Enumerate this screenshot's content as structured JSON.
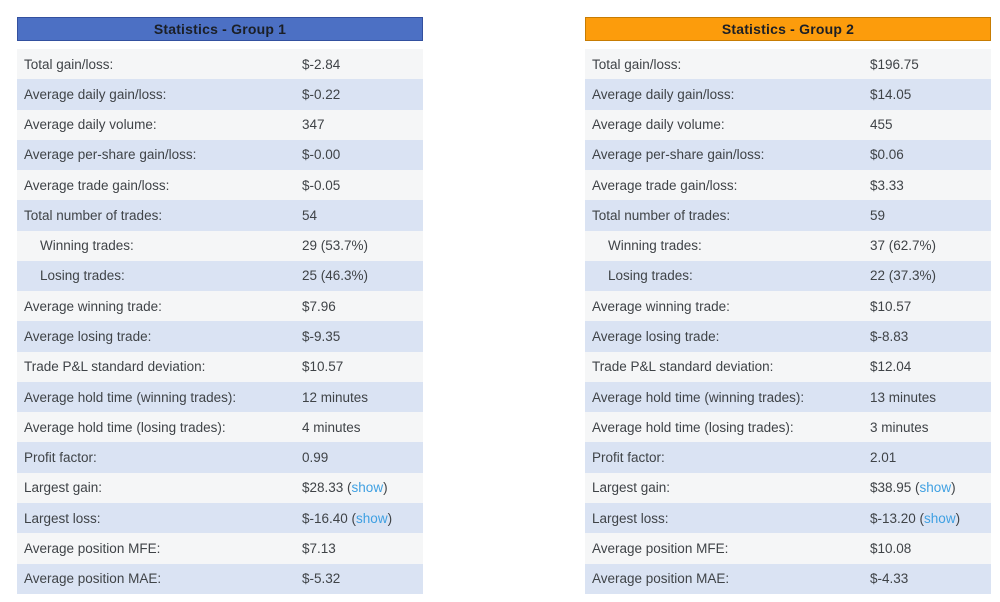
{
  "colors": {
    "page_bg": "#ffffff",
    "header_text": "#1b1f26",
    "group1_header_bg": "#4c70c4",
    "group1_header_border": "#33509f",
    "group2_header_bg": "#fc9c0c",
    "group2_header_border": "#c77c03",
    "row_light_bg": "#f5f6f7",
    "row_blue_bg": "#dae3f3",
    "row_text": "#3f4347",
    "link_color": "#3fa0e2"
  },
  "group1": {
    "title": "Statistics - Group 1",
    "rows": [
      {
        "label": "Total gain/loss:",
        "value": "$-2.84"
      },
      {
        "label": "Average daily gain/loss:",
        "value": "$-0.22"
      },
      {
        "label": "Average daily volume:",
        "value": "347"
      },
      {
        "label": "Average per-share gain/loss:",
        "value": "$-0.00"
      },
      {
        "label": "Average trade gain/loss:",
        "value": "$-0.05"
      },
      {
        "label": "Total number of trades:",
        "value": "54"
      },
      {
        "label": "Winning trades:",
        "value": "29 (53.7%)",
        "indent": true
      },
      {
        "label": "Losing trades:",
        "value": "25 (46.3%)",
        "indent": true
      },
      {
        "label": "Average winning trade:",
        "value": "$7.96"
      },
      {
        "label": "Average losing trade:",
        "value": "$-9.35"
      },
      {
        "label": "Trade P&L standard deviation:",
        "value": "$10.57"
      },
      {
        "label": "Average hold time (winning trades):",
        "value": "12 minutes"
      },
      {
        "label": "Average hold time (losing trades):",
        "value": "4 minutes"
      },
      {
        "label": "Profit factor:",
        "value": "0.99"
      },
      {
        "label": "Largest gain:",
        "value": "$28.33",
        "link": "show"
      },
      {
        "label": "Largest loss:",
        "value": "$-16.40",
        "link": "show"
      },
      {
        "label": "Average position MFE:",
        "value": "$7.13"
      },
      {
        "label": "Average position MAE:",
        "value": "$-5.32"
      }
    ]
  },
  "group2": {
    "title": "Statistics - Group 2",
    "rows": [
      {
        "label": "Total gain/loss:",
        "value": "$196.75"
      },
      {
        "label": "Average daily gain/loss:",
        "value": "$14.05"
      },
      {
        "label": "Average daily volume:",
        "value": "455"
      },
      {
        "label": "Average per-share gain/loss:",
        "value": "$0.06"
      },
      {
        "label": "Average trade gain/loss:",
        "value": "$3.33"
      },
      {
        "label": "Total number of trades:",
        "value": "59"
      },
      {
        "label": "Winning trades:",
        "value": "37 (62.7%)",
        "indent": true
      },
      {
        "label": "Losing trades:",
        "value": "22 (37.3%)",
        "indent": true
      },
      {
        "label": "Average winning trade:",
        "value": "$10.57"
      },
      {
        "label": "Average losing trade:",
        "value": "$-8.83"
      },
      {
        "label": "Trade P&L standard deviation:",
        "value": "$12.04"
      },
      {
        "label": "Average hold time (winning trades):",
        "value": "13 minutes"
      },
      {
        "label": "Average hold time (losing trades):",
        "value": "3 minutes"
      },
      {
        "label": "Profit factor:",
        "value": "2.01"
      },
      {
        "label": "Largest gain:",
        "value": "$38.95",
        "link": "show"
      },
      {
        "label": "Largest loss:",
        "value": "$-13.20",
        "link": "show"
      },
      {
        "label": "Average position MFE:",
        "value": "$10.08"
      },
      {
        "label": "Average position MAE:",
        "value": "$-4.33"
      }
    ]
  }
}
